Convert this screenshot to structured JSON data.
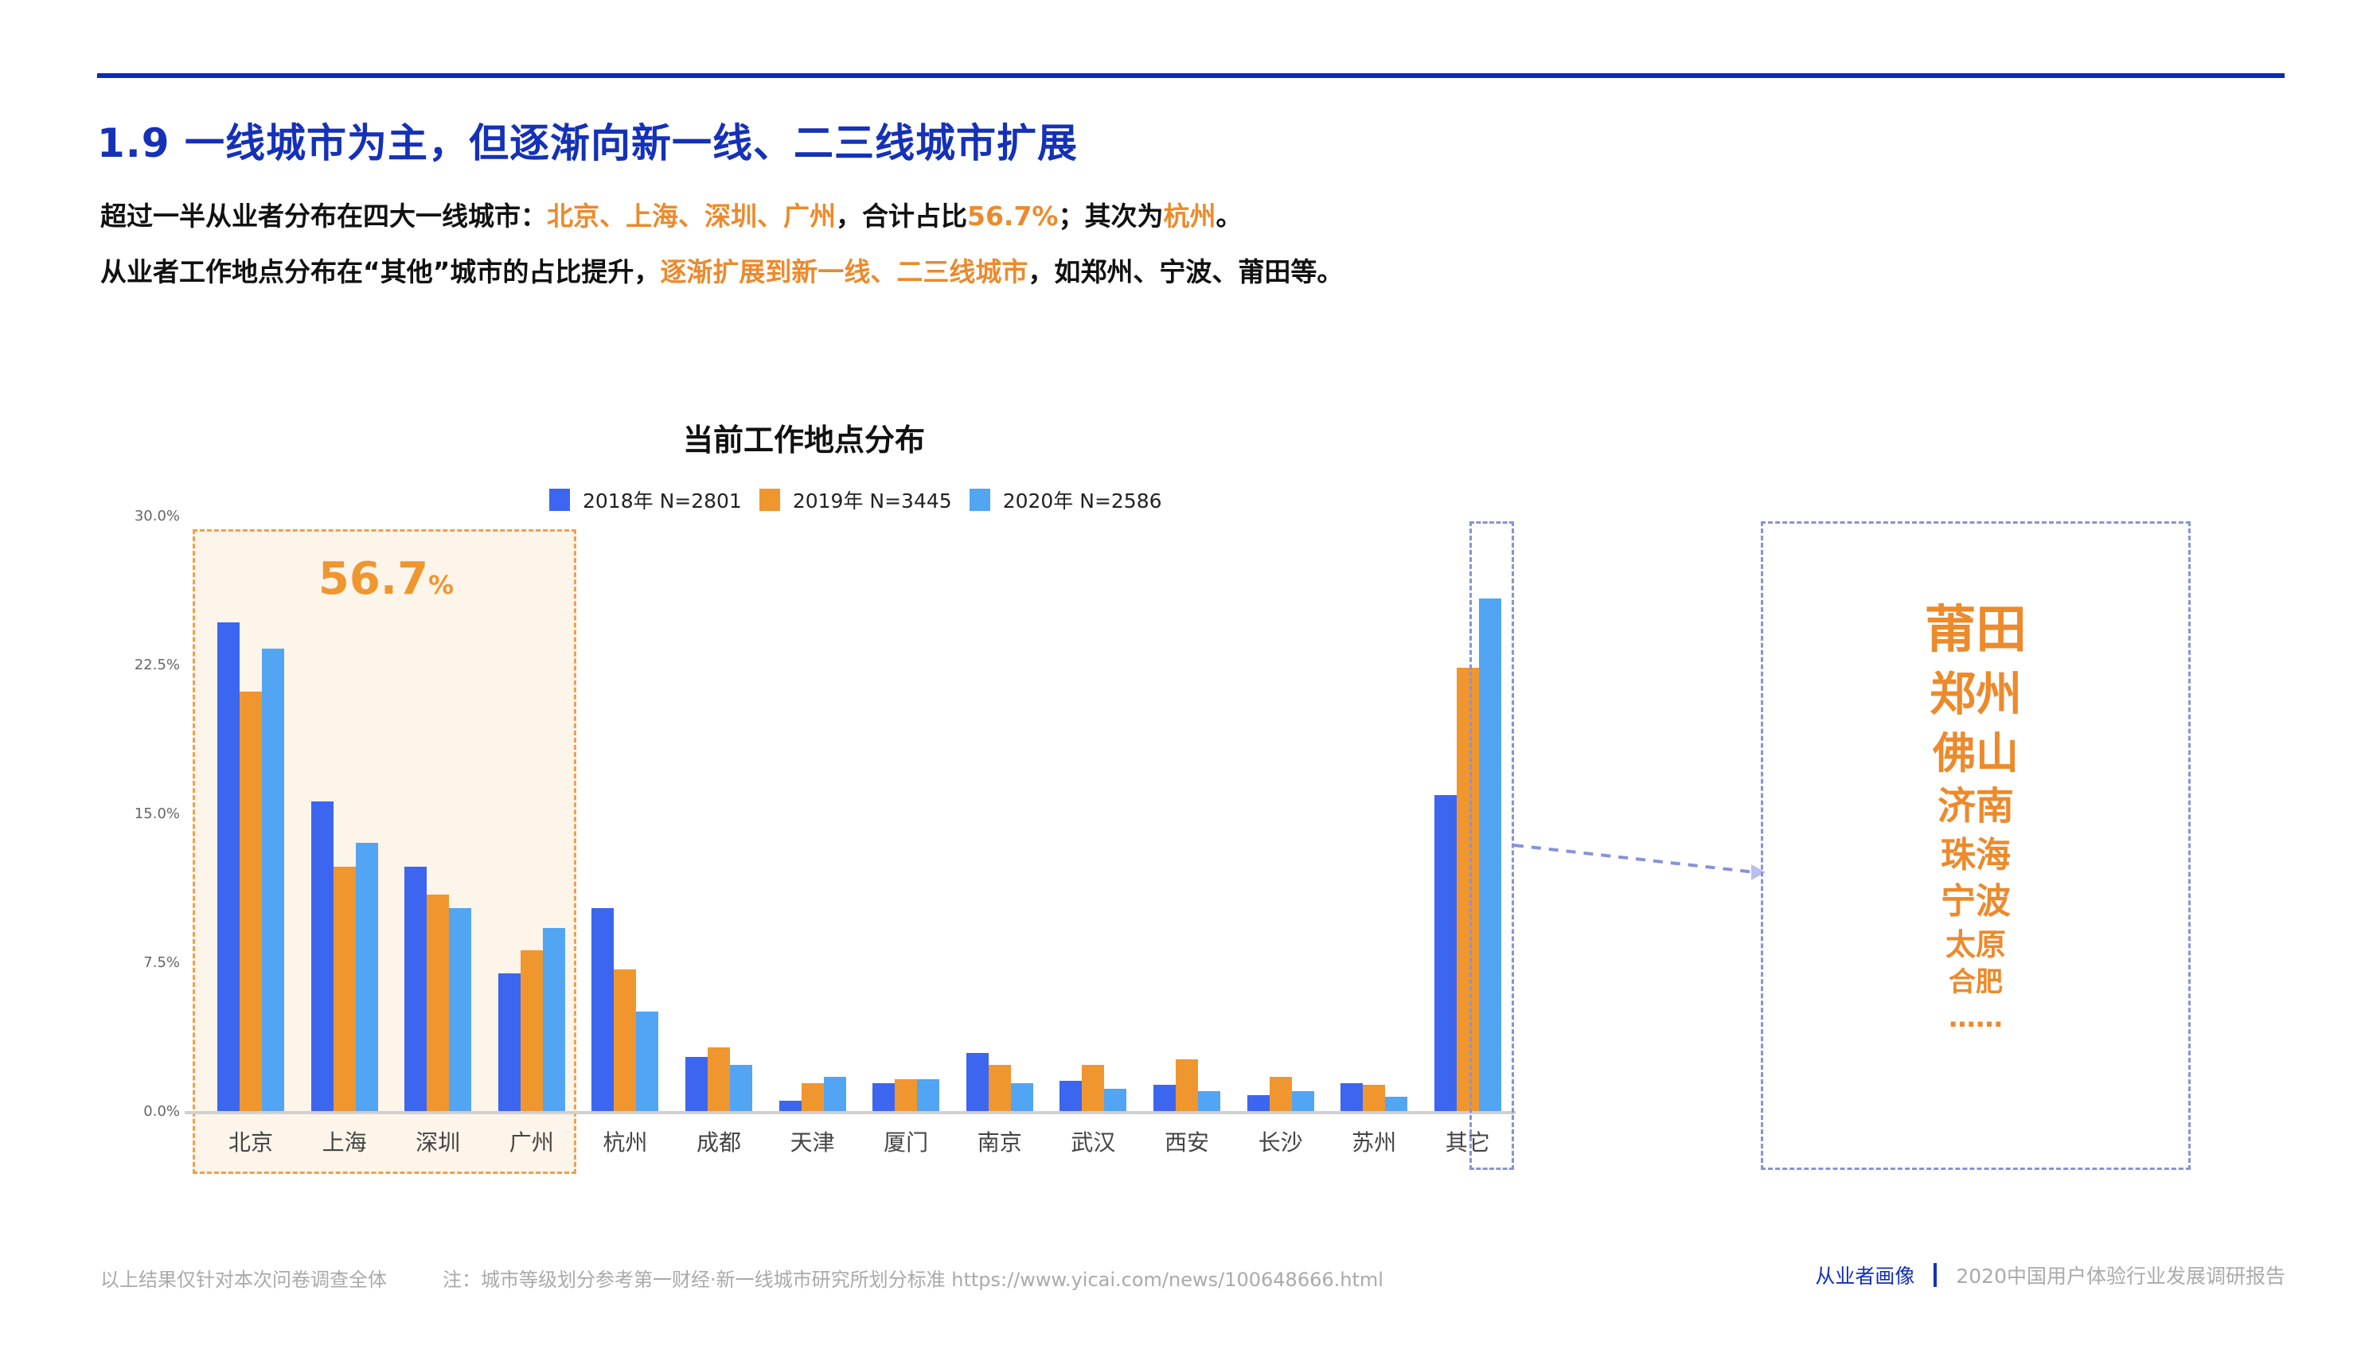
{
  "header": {
    "title": "1.9 一线城市为主，但逐渐向新一线、二三线城市扩展",
    "line1": [
      {
        "text": "超过一半从业者分布在四大一线城市：",
        "hl": false
      },
      {
        "text": "北京、上海、深圳、广州",
        "hl": true
      },
      {
        "text": "，合计占比",
        "hl": false
      },
      {
        "text": "56.7%",
        "hl": true
      },
      {
        "text": "；其次为",
        "hl": false
      },
      {
        "text": "杭州",
        "hl": true
      },
      {
        "text": "。",
        "hl": false
      }
    ],
    "line2": [
      {
        "text": "从业者工作地点分布在“其他”城市的占比提升，",
        "hl": false
      },
      {
        "text": "逐渐扩展到新一线、二三线城市",
        "hl": true
      },
      {
        "text": "，如郑州、宁波、莆田等。",
        "hl": false
      }
    ]
  },
  "colors": {
    "accent_blue": "#1431b8",
    "highlight_orange": "#ec8a2c",
    "series_2018": "#3c66f0",
    "series_2019": "#f0962f",
    "series_2020": "#52a5f2",
    "dashed_box": "#8793d6"
  },
  "chart_data": {
    "type": "bar",
    "title": "当前工作地点分布",
    "xlabel": "",
    "ylabel": "",
    "ylim": [
      0,
      30
    ],
    "yticks": [
      "0.0%",
      "7.5%",
      "15.0%",
      "22.5%",
      "30.0%"
    ],
    "legend_position": "top",
    "grid": false,
    "categories": [
      "北京",
      "上海",
      "深圳",
      "广州",
      "杭州",
      "成都",
      "天津",
      "厦门",
      "南京",
      "武汉",
      "西安",
      "长沙",
      "苏州",
      "其它"
    ],
    "series": [
      {
        "name": "2018年 N=2801",
        "values": [
          24.7,
          15.7,
          12.4,
          7.0,
          10.3,
          2.8,
          0.6,
          1.5,
          3.0,
          1.6,
          1.4,
          0.9,
          1.5,
          16.0
        ]
      },
      {
        "name": "2019年 N=3445",
        "values": [
          21.2,
          12.4,
          11.0,
          8.2,
          7.2,
          3.3,
          1.5,
          1.7,
          2.4,
          2.4,
          2.7,
          1.8,
          1.4,
          22.4
        ]
      },
      {
        "name": "2020年 N=2586",
        "values": [
          23.4,
          13.6,
          10.3,
          9.3,
          5.1,
          2.4,
          1.8,
          1.7,
          1.5,
          1.2,
          1.1,
          1.1,
          0.8,
          25.9
        ]
      }
    ],
    "annotations": [
      {
        "text": "56.7",
        "suffix": "%",
        "target": "北京、上海、深圳、广州"
      }
    ]
  },
  "other_cities_panel": {
    "cities": [
      {
        "name": "莆田",
        "size": 64
      },
      {
        "name": "郑州",
        "size": 58
      },
      {
        "name": "佛山",
        "size": 54
      },
      {
        "name": "济南",
        "size": 48
      },
      {
        "name": "珠海",
        "size": 44
      },
      {
        "name": "宁波",
        "size": 44
      },
      {
        "name": "太原",
        "size": 38
      },
      {
        "name": "合肥",
        "size": 34
      },
      {
        "name": "……",
        "size": 34
      }
    ]
  },
  "footer": {
    "scope": "以上结果仅针对本次问卷调查全体",
    "note": "注：城市等级划分参考第一财经·新一线城市研究所划分标准 https://www.yicai.com/news/100648666.html",
    "section": "从业者画像",
    "report": "2020中国用户体验行业发展调研报告"
  }
}
